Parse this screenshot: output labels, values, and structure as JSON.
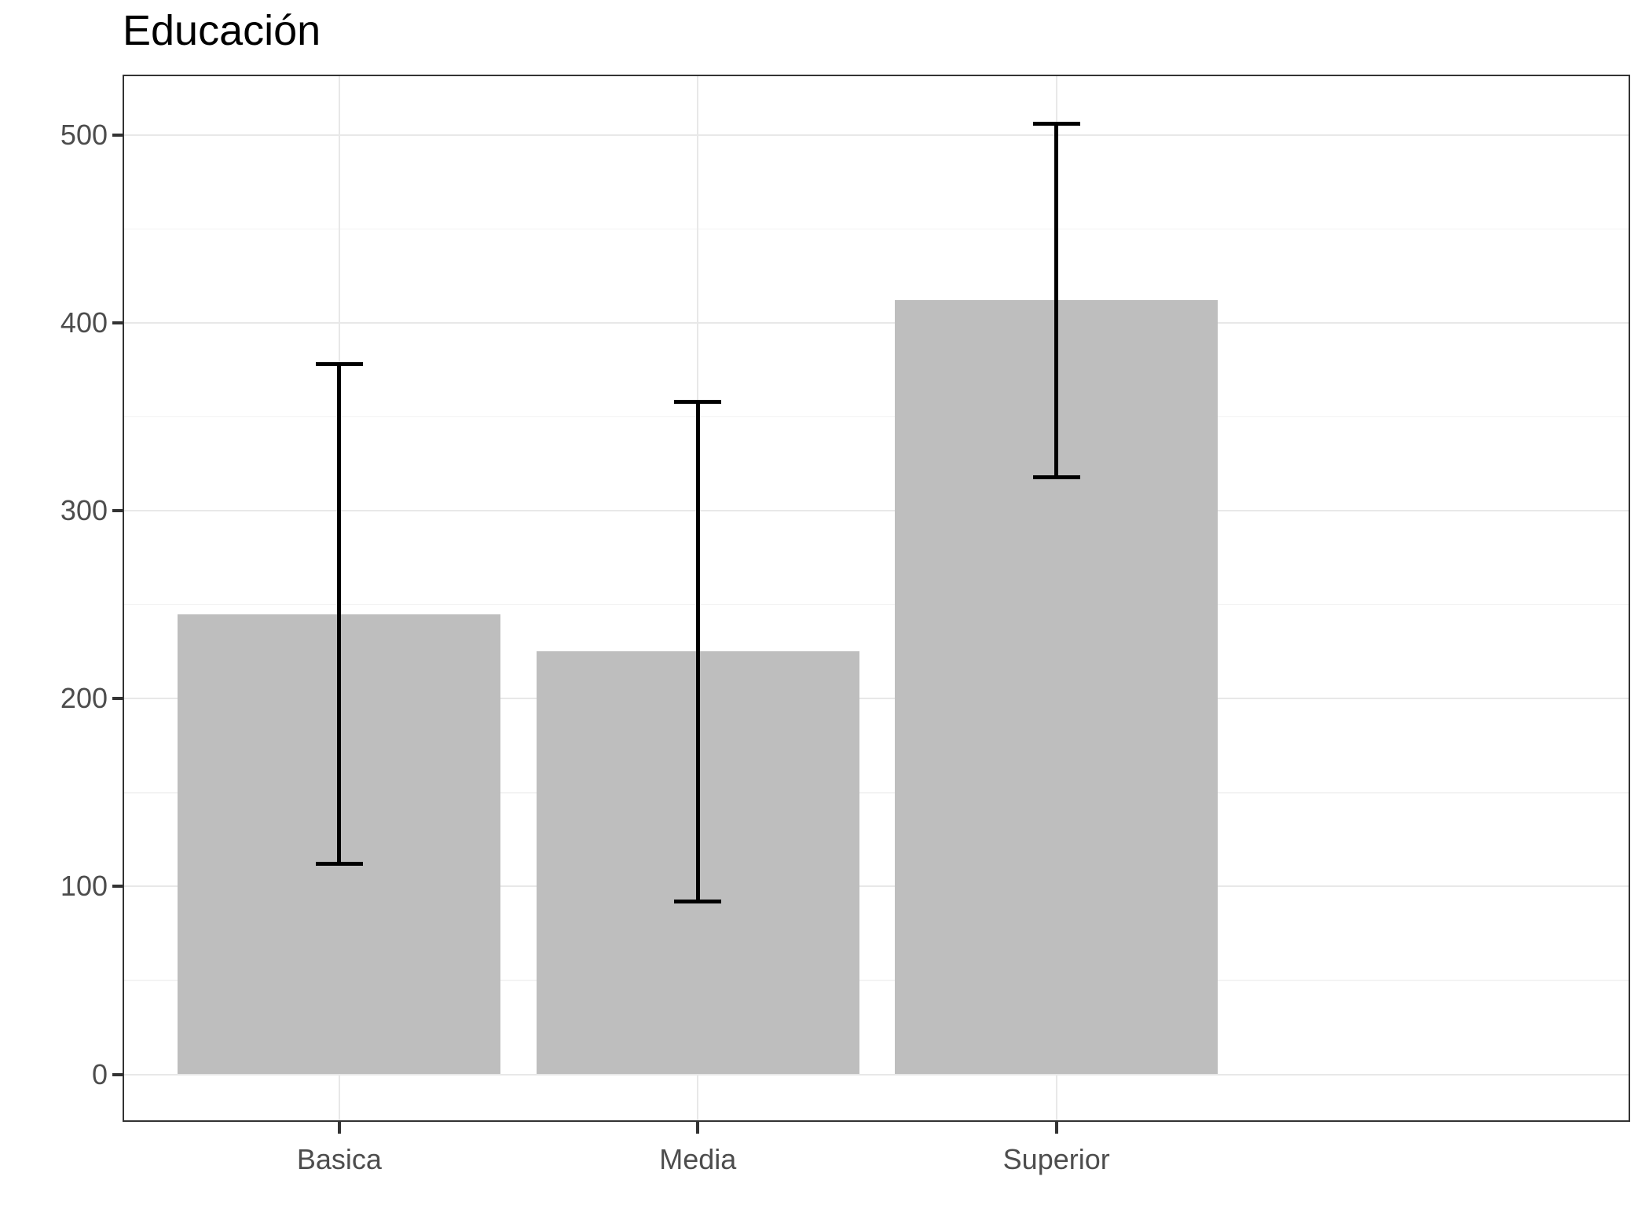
{
  "title": "Educación",
  "colors": {
    "bar_fill": "#bebebe",
    "error_bar": "#000000",
    "grid_major": "#e8e8e8",
    "grid_minor": "#f3f3f3",
    "panel_border": "#333333",
    "tick_mark": "#333333",
    "axis_text": "#4d4d4d",
    "title_text": "#000000",
    "background": "#ffffff"
  },
  "chart_data": {
    "type": "bar",
    "title": "Educación",
    "categories": [
      "Basica",
      "Media",
      "Superior"
    ],
    "values": [
      245,
      225,
      412
    ],
    "error_bars": {
      "lower": [
        112,
        92,
        318
      ],
      "upper": [
        378,
        358,
        506
      ]
    },
    "xlabel": "",
    "ylabel": "",
    "y_ticks": [
      0,
      100,
      200,
      300,
      400,
      500
    ],
    "y_minor_ticks": [
      50,
      150,
      250,
      350,
      450
    ],
    "ylim": [
      -25.3,
      531.3
    ],
    "bar_width_fraction": 0.9,
    "grid": true,
    "legend": false
  }
}
